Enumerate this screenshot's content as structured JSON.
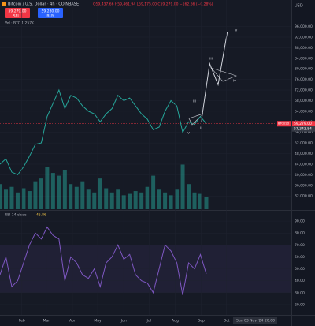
{
  "chart_data": [
    {
      "type": "line",
      "title": "Bitcoin / U.S. Dollar · 4h · COINBASE",
      "ohlc": "O59,437.66 H59,461.94 L59,175.00 C59,279.00 −162.66 (−0.28%)",
      "volume_label": "Vol · BTC 1.257K",
      "sell_price": "59,279.00",
      "buy_price": "59,280.00",
      "sell": "SELL",
      "buy": "BUY",
      "currency": "USD",
      "symbol_tag": "BTCUSD",
      "price_tags": [
        {
          "value": 59279,
          "label": "59,279.00",
          "color": "#f23645"
        },
        {
          "value": 57343.84,
          "label": "57,343.84",
          "color": "#363a45"
        }
      ],
      "wave_labels": [
        "v",
        "iii",
        "iv",
        "iii",
        "iv",
        "ii"
      ],
      "xlim": [
        5,
        351
      ],
      "ylim": [
        27000,
        106000
      ],
      "y2lim": [
        0,
        150
      ],
      "yticks": [
        {
          "value": 96000,
          "label": "96,000.00"
        },
        {
          "value": 92000,
          "label": "92,000.00"
        },
        {
          "value": 88000,
          "label": "88,000.00"
        },
        {
          "value": 84000,
          "label": "84,000.00"
        },
        {
          "value": 80000,
          "label": "80,000.00"
        },
        {
          "value": 76000,
          "label": "76,000.00"
        },
        {
          "value": 72000,
          "label": "72,000.00"
        },
        {
          "value": 68000,
          "label": "68,000.00"
        },
        {
          "value": 64000,
          "label": "64,000.00"
        },
        {
          "value": 60000,
          "label": "60,000.00"
        },
        {
          "value": 56000,
          "label": "56,000.00"
        },
        {
          "value": 52000,
          "label": "52,000.00"
        },
        {
          "value": 48000,
          "label": "48,000.00"
        },
        {
          "value": 44000,
          "label": "44,000.00"
        },
        {
          "value": 40000,
          "label": "40,000.00"
        },
        {
          "value": 36000,
          "label": "36,000.00"
        },
        {
          "value": 32000,
          "label": "32,000.00"
        }
      ],
      "series": [
        {
          "name": "price",
          "color": "#26a69a",
          "x": [
            5,
            12,
            19,
            26,
            33,
            40,
            47,
            54,
            61,
            68,
            75,
            82,
            89,
            96,
            103,
            110,
            117,
            124,
            131,
            138,
            145,
            152,
            159,
            166,
            173,
            180,
            187,
            194,
            201,
            208,
            215,
            222,
            229,
            236,
            243,
            250
          ],
          "values": [
            44000,
            46000,
            41000,
            40000,
            43000,
            47000,
            51500,
            52000,
            62000,
            67000,
            72000,
            65000,
            70000,
            69000,
            66000,
            64000,
            63000,
            60000,
            63000,
            65000,
            70000,
            68000,
            69000,
            66000,
            63000,
            61000,
            57000,
            58000,
            64000,
            68000,
            66000,
            56000,
            60000,
            59000,
            62000,
            59279
          ]
        },
        {
          "name": "projection",
          "color": "#d1d4dc",
          "x": [
            244,
            254,
            264,
            275
          ],
          "values": [
            60000,
            82000,
            74000,
            94000
          ]
        },
        {
          "name": "volume",
          "color": "#26a69a",
          "axis": "y2",
          "x": [
            5,
            12,
            19,
            26,
            33,
            40,
            47,
            54,
            61,
            68,
            75,
            82,
            89,
            96,
            103,
            110,
            117,
            124,
            131,
            138,
            145,
            152,
            159,
            166,
            173,
            180,
            187,
            194,
            201,
            208,
            215,
            222,
            229,
            236,
            243,
            250
          ],
          "values": [
            18,
            14,
            16,
            12,
            15,
            13,
            20,
            22,
            30,
            26,
            24,
            28,
            18,
            16,
            20,
            14,
            12,
            22,
            15,
            12,
            14,
            10,
            11,
            13,
            12,
            16,
            24,
            14,
            12,
            10,
            14,
            32,
            18,
            12,
            11,
            9
          ]
        }
      ]
    },
    {
      "type": "line",
      "title": "RSI 14 close",
      "xlim": [
        5,
        351
      ],
      "ylim": [
        12,
        98
      ],
      "yticks": [
        {
          "value": 90,
          "label": "90.00"
        },
        {
          "value": 80,
          "label": "80.00"
        },
        {
          "value": 70,
          "label": "70.00"
        },
        {
          "value": 60,
          "label": "60.00"
        },
        {
          "value": 50,
          "label": "50.00"
        },
        {
          "value": 40,
          "label": "40.00"
        },
        {
          "value": 30,
          "label": "30.00"
        },
        {
          "value": 20,
          "label": "20.00"
        }
      ],
      "xticks": [
        {
          "value": 31,
          "label": "Feb"
        },
        {
          "value": 60,
          "label": "Mar"
        },
        {
          "value": 91,
          "label": "Apr"
        },
        {
          "value": 121,
          "label": "May"
        },
        {
          "value": 152,
          "label": "Jun"
        },
        {
          "value": 182,
          "label": "Jul"
        },
        {
          "value": 213,
          "label": "Aug"
        },
        {
          "value": 244,
          "label": "Sep"
        },
        {
          "value": 274,
          "label": "Oct"
        }
      ],
      "cursor_label": "Sun 03 Nov '24",
      "time_label": "20:00",
      "band": [
        30,
        70
      ],
      "series": [
        {
          "name": "RSI",
          "color": "#7e57c2",
          "x": [
            5,
            12,
            19,
            26,
            33,
            40,
            47,
            54,
            61,
            68,
            75,
            82,
            89,
            96,
            103,
            110,
            117,
            124,
            131,
            138,
            145,
            152,
            159,
            166,
            173,
            180,
            187,
            194,
            201,
            208,
            215,
            222,
            229,
            236,
            243,
            250
          ],
          "values": [
            45,
            60,
            35,
            40,
            55,
            70,
            80,
            75,
            85,
            78,
            75,
            40,
            60,
            55,
            45,
            42,
            50,
            35,
            55,
            60,
            70,
            58,
            62,
            45,
            40,
            38,
            30,
            50,
            70,
            65,
            55,
            28,
            55,
            50,
            62,
            45.86
          ]
        }
      ]
    }
  ]
}
